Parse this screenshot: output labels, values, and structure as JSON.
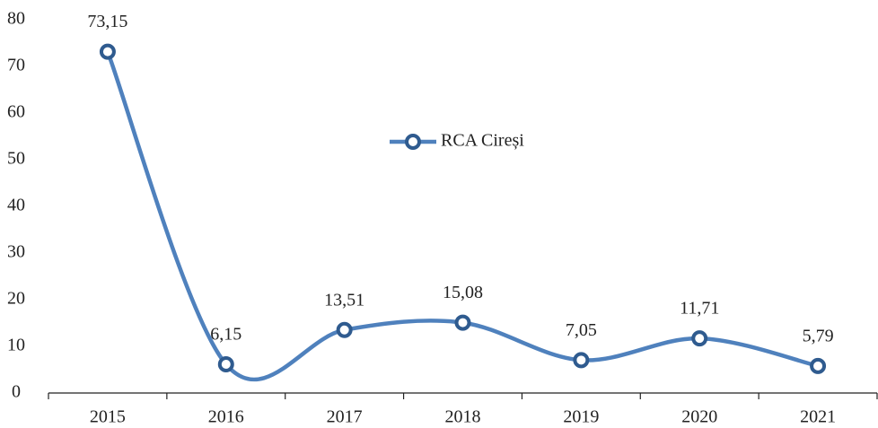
{
  "chart_data": {
    "type": "line",
    "categories": [
      "2015",
      "2016",
      "2017",
      "2018",
      "2019",
      "2020",
      "2021"
    ],
    "series": [
      {
        "name": "RCA Cireși",
        "color": "#4f81bd",
        "marker_edge": "#2f5b8f",
        "values": [
          73.15,
          6.15,
          13.51,
          15.08,
          7.05,
          11.71,
          5.79
        ],
        "value_labels": [
          "73,15",
          "6,15",
          "13,51",
          "15,08",
          "7,05",
          "11,71",
          "5,79"
        ]
      }
    ],
    "ylim": [
      0,
      80
    ],
    "yticks": [
      0,
      10,
      20,
      30,
      40,
      50,
      60,
      70,
      80
    ],
    "grid": false,
    "smooth": true
  }
}
